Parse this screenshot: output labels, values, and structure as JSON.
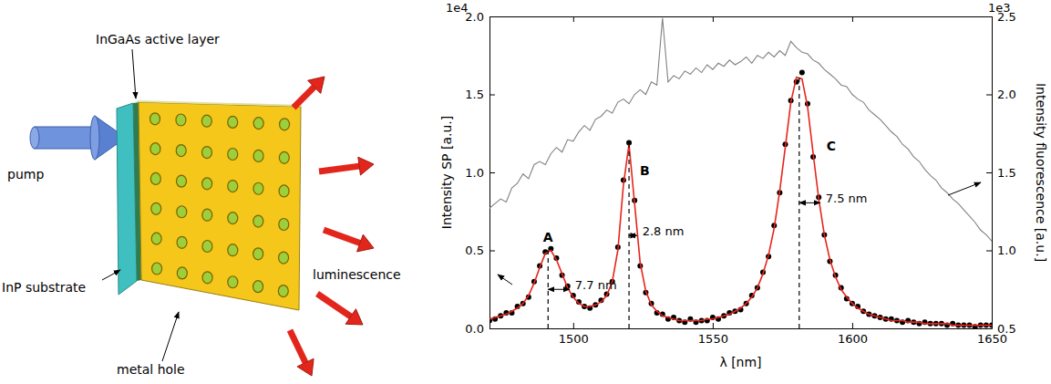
{
  "diagram": {
    "labels": [
      "InGaAs active layer",
      "pump",
      "InP substrate",
      "metal hole",
      "luminescence"
    ]
  },
  "chart_data": {
    "type": "line",
    "x_label": "λ [nm]",
    "y_label": "Intensity SP [a.u.]",
    "y2_label": "Intensity fluorescence [a.u.]",
    "offset_labels": {
      "y": "1e4",
      "y2": "1e3"
    },
    "xlim": [
      1470,
      1650
    ],
    "xticks": [
      1500,
      1550,
      1600,
      1650
    ],
    "ylim": [
      0,
      2
    ],
    "yticks": [
      {
        "value": 0,
        "label": "0.0"
      },
      0.5,
      {
        "value": 1,
        "label": "1.0"
      },
      1.5,
      {
        "value": 2,
        "label": "2.0"
      }
    ],
    "y2lim": [
      0.5,
      2.5
    ],
    "y2ticks": [
      0.5,
      {
        "value": 1,
        "label": "1.0"
      },
      1.5,
      {
        "value": 2,
        "label": "2.0"
      },
      2.5
    ],
    "x": [
      1470,
      1472,
      1474,
      1476,
      1478,
      1480,
      1482,
      1484,
      1486,
      1488,
      1490,
      1492,
      1494,
      1496,
      1498,
      1500,
      1502,
      1504,
      1506,
      1508,
      1510,
      1512,
      1514,
      1516,
      1518,
      1520,
      1522,
      1524,
      1526,
      1528,
      1530,
      1532,
      1534,
      1536,
      1538,
      1540,
      1542,
      1544,
      1546,
      1548,
      1550,
      1552,
      1554,
      1556,
      1558,
      1560,
      1562,
      1564,
      1566,
      1568,
      1570,
      1572,
      1574,
      1576,
      1578,
      1580,
      1582,
      1584,
      1586,
      1588,
      1590,
      1592,
      1594,
      1596,
      1598,
      1600,
      1602,
      1604,
      1606,
      1608,
      1610,
      1612,
      1614,
      1616,
      1618,
      1620,
      1622,
      1624,
      1626,
      1628,
      1630,
      1632,
      1634,
      1636,
      1638,
      1640,
      1642,
      1644,
      1646,
      1648,
      1650
    ],
    "series": [
      {
        "type": "scatter",
        "marker": "circle",
        "color": "#000000",
        "values": [
          0.05,
          0.06,
          0.08,
          0.1,
          0.1,
          0.14,
          0.16,
          0.2,
          0.3,
          0.4,
          0.49,
          0.51,
          0.45,
          0.34,
          0.27,
          0.21,
          0.17,
          0.14,
          0.13,
          0.15,
          0.18,
          0.22,
          0.3,
          0.52,
          0.95,
          1.19,
          0.82,
          0.4,
          0.23,
          0.16,
          0.1,
          0.09,
          0.06,
          0.07,
          0.05,
          0.04,
          0.06,
          0.04,
          0.05,
          0.05,
          0.07,
          0.06,
          0.08,
          0.1,
          0.11,
          0.12,
          0.16,
          0.21,
          0.26,
          0.36,
          0.46,
          0.66,
          0.87,
          1.18,
          1.46,
          1.58,
          1.64,
          1.44,
          1.1,
          0.84,
          0.6,
          0.43,
          0.34,
          0.26,
          0.19,
          0.16,
          0.14,
          0.11,
          0.09,
          0.08,
          0.07,
          0.06,
          0.06,
          0.05,
          0.04,
          0.05,
          0.04,
          0.03,
          0.04,
          0.03,
          0.03,
          0.03,
          0.02,
          0.03,
          0.02,
          0.02,
          0.02,
          0.01,
          0.02,
          0.02,
          0.02
        ]
      },
      {
        "type": "line",
        "line_style": "solid",
        "color": "#e8241c",
        "values": [
          0.06,
          0.07,
          0.08,
          0.09,
          0.11,
          0.13,
          0.16,
          0.21,
          0.29,
          0.39,
          0.48,
          0.5,
          0.44,
          0.35,
          0.26,
          0.2,
          0.16,
          0.14,
          0.14,
          0.15,
          0.17,
          0.21,
          0.3,
          0.5,
          0.92,
          1.18,
          0.8,
          0.42,
          0.24,
          0.15,
          0.11,
          0.08,
          0.07,
          0.06,
          0.05,
          0.05,
          0.05,
          0.05,
          0.05,
          0.06,
          0.06,
          0.07,
          0.08,
          0.09,
          0.11,
          0.13,
          0.16,
          0.2,
          0.26,
          0.35,
          0.47,
          0.64,
          0.88,
          1.16,
          1.45,
          1.61,
          1.6,
          1.42,
          1.12,
          0.83,
          0.6,
          0.44,
          0.33,
          0.25,
          0.2,
          0.16,
          0.13,
          0.11,
          0.09,
          0.08,
          0.07,
          0.06,
          0.05,
          0.05,
          0.05,
          0.04,
          0.04,
          0.04,
          0.03,
          0.03,
          0.03,
          0.03,
          0.03,
          0.02,
          0.02,
          0.02,
          0.02,
          0.02,
          0.02,
          0.02,
          0.02
        ]
      },
      {
        "type": "line",
        "line_style": "solid",
        "color": "#808080",
        "axis": "y2",
        "values": [
          1.27,
          1.3,
          1.33,
          1.31,
          1.4,
          1.43,
          1.49,
          1.46,
          1.55,
          1.57,
          1.55,
          1.62,
          1.66,
          1.63,
          1.71,
          1.7,
          1.76,
          1.8,
          1.77,
          1.84,
          1.86,
          1.9,
          1.88,
          1.95,
          1.97,
          1.94,
          2.0,
          2.03,
          2.0,
          2.08,
          2.06,
          2.49,
          2.08,
          2.12,
          2.1,
          2.15,
          2.13,
          2.17,
          2.14,
          2.19,
          2.16,
          2.2,
          2.18,
          2.22,
          2.19,
          2.21,
          2.24,
          2.2,
          2.25,
          2.23,
          2.27,
          2.24,
          2.28,
          2.25,
          2.34,
          2.3,
          2.27,
          2.26,
          2.22,
          2.2,
          2.16,
          2.13,
          2.1,
          2.06,
          2.05,
          2.0,
          1.97,
          1.95,
          1.9,
          1.87,
          1.84,
          1.8,
          1.76,
          1.73,
          1.68,
          1.65,
          1.6,
          1.57,
          1.52,
          1.48,
          1.45,
          1.4,
          1.37,
          1.33,
          1.3,
          1.26,
          1.22,
          1.18,
          1.13,
          1.1,
          1.06
        ]
      }
    ],
    "annotations": [
      {
        "text": "A",
        "x": 1491,
        "y": 0.5,
        "fwhm": 7.7,
        "fwhm_label": "7.7 nm"
      },
      {
        "text": "B",
        "x": 1520,
        "y": 1.19,
        "fwhm": 2.8,
        "fwhm_label": "2.8 nm"
      },
      {
        "text": "C",
        "x": 1581,
        "y": 1.61,
        "fwhm": 7.5,
        "fwhm_label": "7.5 nm"
      }
    ]
  }
}
